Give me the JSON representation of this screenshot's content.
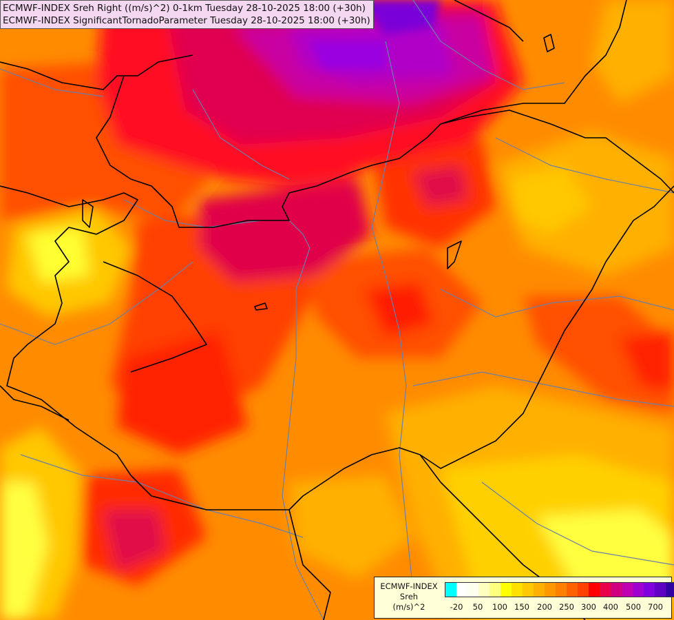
{
  "header": {
    "line1": "ECMWF-INDEX Sreh Right ((m/s)^2) 0-1km Tuesday 28-10-2025 18:00 (+30h)",
    "line2": "ECMWF-INDEX SignificantTornadoParameter Tuesday 28-10-2025 18:00 (+30h)"
  },
  "legend": {
    "line1": "ECMWF-INDEX",
    "line2": "Sreh",
    "line3": "(m/s)^2",
    "colors": [
      "#00ffff",
      "#ffffff",
      "#fffff0",
      "#ffffc0",
      "#ffff80",
      "#ffff00",
      "#ffe000",
      "#ffc800",
      "#ffb000",
      "#ff9800",
      "#ff8000",
      "#ff6000",
      "#ff4000",
      "#ff0000",
      "#e8004a",
      "#d00080",
      "#c000b0",
      "#a000d0",
      "#8000e0",
      "#6000c0",
      "#3000a0",
      "#000080"
    ],
    "ticks": [
      "-20",
      "50",
      "100",
      "150",
      "200",
      "250",
      "300",
      "400",
      "500",
      "700"
    ]
  },
  "palette": {
    "base": "#ff8c00",
    "yellow": "#ffff00",
    "light_yellow": "#ffff80",
    "gold": "#ffc800",
    "amber": "#ffb000",
    "orange": "#ff9800",
    "red_orange": "#ff6000",
    "red": "#ff3000",
    "crimson": "#ff0000",
    "magenta": "#d0105a",
    "purple": "#c000c0",
    "violet": "#8000e0",
    "border": "#000000",
    "river": "#6a7fa8"
  }
}
